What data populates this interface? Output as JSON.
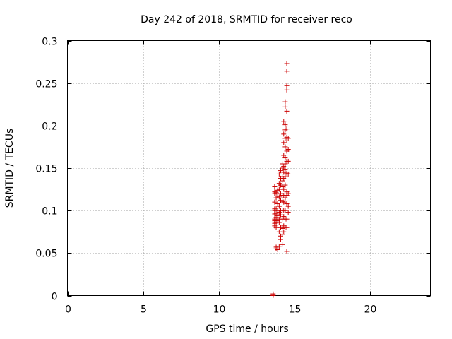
{
  "chart_data": {
    "type": "scatter",
    "title": "Day 242 of 2018, SRMTID for receiver reco",
    "xlabel": "GPS time / hours",
    "ylabel": "SRMTID / TECUs",
    "xlim": [
      0,
      24
    ],
    "ylim": [
      0,
      0.3
    ],
    "xticks": [
      0,
      5,
      10,
      15,
      20
    ],
    "xtick_labels": [
      "0",
      "5",
      "10",
      "15",
      "20"
    ],
    "yticks": [
      0,
      0.05,
      0.1,
      0.15,
      0.2,
      0.25,
      0.3
    ],
    "ytick_labels": [
      "0",
      "0.05",
      "0.1",
      "0.15",
      "0.2",
      "0.25",
      "0.3"
    ],
    "grid": true,
    "marker": "+",
    "color": "#cc0000",
    "points": [
      [
        13.6,
        0.0
      ],
      [
        13.6,
        0.001
      ],
      [
        13.6,
        0.002
      ],
      [
        13.7,
        0.128
      ],
      [
        13.7,
        0.122
      ],
      [
        13.7,
        0.12
      ],
      [
        13.7,
        0.11
      ],
      [
        13.7,
        0.102
      ],
      [
        13.7,
        0.1
      ],
      [
        13.7,
        0.096
      ],
      [
        13.7,
        0.09
      ],
      [
        13.7,
        0.088
      ],
      [
        13.7,
        0.085
      ],
      [
        13.7,
        0.082
      ],
      [
        13.8,
        0.121
      ],
      [
        13.8,
        0.115
      ],
      [
        13.8,
        0.103
      ],
      [
        13.8,
        0.097
      ],
      [
        13.8,
        0.092
      ],
      [
        13.8,
        0.086
      ],
      [
        13.8,
        0.08
      ],
      [
        13.8,
        0.057
      ],
      [
        13.8,
        0.055
      ],
      [
        13.9,
        0.124
      ],
      [
        13.9,
        0.117
      ],
      [
        13.9,
        0.108
      ],
      [
        13.9,
        0.1
      ],
      [
        13.9,
        0.094
      ],
      [
        13.9,
        0.088
      ],
      [
        13.9,
        0.054
      ],
      [
        14.0,
        0.143
      ],
      [
        14.0,
        0.132
      ],
      [
        14.0,
        0.125
      ],
      [
        14.0,
        0.116
      ],
      [
        14.0,
        0.105
      ],
      [
        14.0,
        0.098
      ],
      [
        14.0,
        0.09
      ],
      [
        14.0,
        0.086
      ],
      [
        14.0,
        0.075
      ],
      [
        14.0,
        0.058
      ],
      [
        14.1,
        0.147
      ],
      [
        14.1,
        0.138
      ],
      [
        14.1,
        0.13
      ],
      [
        14.1,
        0.12
      ],
      [
        14.1,
        0.112
      ],
      [
        14.1,
        0.1
      ],
      [
        14.1,
        0.095
      ],
      [
        14.1,
        0.08
      ],
      [
        14.1,
        0.07
      ],
      [
        14.1,
        0.066
      ],
      [
        14.2,
        0.155
      ],
      [
        14.2,
        0.15
      ],
      [
        14.2,
        0.14
      ],
      [
        14.2,
        0.135
      ],
      [
        14.2,
        0.128
      ],
      [
        14.2,
        0.118
      ],
      [
        14.2,
        0.111
      ],
      [
        14.2,
        0.1
      ],
      [
        14.2,
        0.09
      ],
      [
        14.2,
        0.079
      ],
      [
        14.2,
        0.072
      ],
      [
        14.2,
        0.06
      ],
      [
        14.3,
        0.205
      ],
      [
        14.3,
        0.19
      ],
      [
        14.3,
        0.18
      ],
      [
        14.3,
        0.165
      ],
      [
        14.3,
        0.152
      ],
      [
        14.3,
        0.145
      ],
      [
        14.3,
        0.138
      ],
      [
        14.3,
        0.125
      ],
      [
        14.3,
        0.118
      ],
      [
        14.3,
        0.11
      ],
      [
        14.3,
        0.1
      ],
      [
        14.3,
        0.093
      ],
      [
        14.3,
        0.082
      ],
      [
        14.3,
        0.075
      ],
      [
        14.4,
        0.228
      ],
      [
        14.4,
        0.222
      ],
      [
        14.4,
        0.201
      ],
      [
        14.4,
        0.195
      ],
      [
        14.4,
        0.185
      ],
      [
        14.4,
        0.175
      ],
      [
        14.4,
        0.162
      ],
      [
        14.4,
        0.155
      ],
      [
        14.4,
        0.148
      ],
      [
        14.4,
        0.14
      ],
      [
        14.4,
        0.13
      ],
      [
        14.4,
        0.115
      ],
      [
        14.4,
        0.1
      ],
      [
        14.4,
        0.09
      ],
      [
        14.4,
        0.08
      ],
      [
        14.5,
        0.273
      ],
      [
        14.5,
        0.264
      ],
      [
        14.5,
        0.247
      ],
      [
        14.5,
        0.242
      ],
      [
        14.5,
        0.217
      ],
      [
        14.5,
        0.196
      ],
      [
        14.5,
        0.186
      ],
      [
        14.5,
        0.182
      ],
      [
        14.5,
        0.17
      ],
      [
        14.5,
        0.158
      ],
      [
        14.5,
        0.144
      ],
      [
        14.5,
        0.122
      ],
      [
        14.5,
        0.118
      ],
      [
        14.5,
        0.108
      ],
      [
        14.5,
        0.09
      ],
      [
        14.5,
        0.08
      ],
      [
        14.5,
        0.052
      ],
      [
        14.6,
        0.185
      ],
      [
        14.6,
        0.172
      ],
      [
        14.6,
        0.158
      ],
      [
        14.6,
        0.143
      ],
      [
        14.6,
        0.12
      ],
      [
        14.6,
        0.105
      ],
      [
        14.6,
        0.098
      ]
    ]
  }
}
